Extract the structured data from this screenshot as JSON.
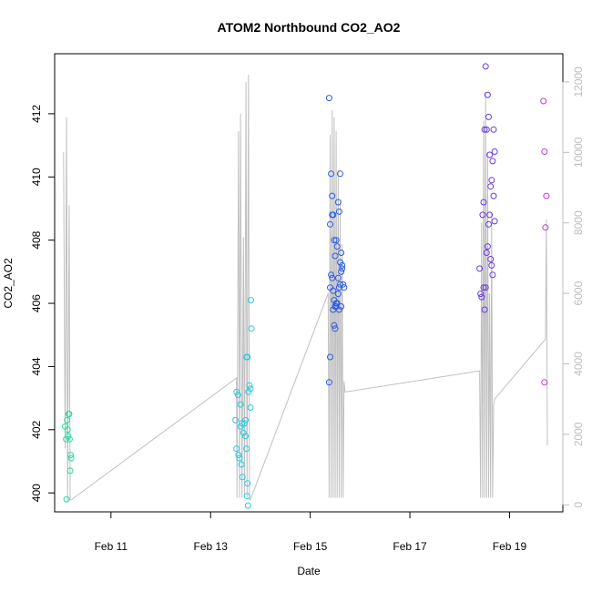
{
  "chart_data": {
    "type": "scatter",
    "title": "ATOM2 Northbound CO2_AO2",
    "xlabel": "Date",
    "ylabel": "CO2_AO2",
    "x_ticks": [
      "Feb 11",
      "Feb 13",
      "Feb 15",
      "Feb 17",
      "Feb 19"
    ],
    "x_tick_days": [
      11,
      13,
      15,
      17,
      19
    ],
    "xlim": [
      9.87,
      20.07
    ],
    "y_ticks": [
      400,
      402,
      404,
      406,
      408,
      410,
      412
    ],
    "ylim": [
      399.4,
      413.9
    ],
    "y2_ticks": [
      0,
      2000,
      4000,
      6000,
      8000,
      10000,
      12000
    ],
    "y2lim": [
      -200,
      12800
    ],
    "colors": {
      "axis": "#000000",
      "right_axis": "#bdbdbd",
      "line": "#c0c0c0"
    },
    "series": [
      {
        "color": "#2fd8a0",
        "points": [
          [
            10.08,
            402.1
          ],
          [
            10.1,
            401.7
          ],
          [
            10.12,
            402.3
          ],
          [
            10.13,
            402.0
          ],
          [
            10.14,
            401.8
          ],
          [
            10.15,
            402.5
          ],
          [
            10.16,
            402.5
          ],
          [
            10.17,
            401.7
          ],
          [
            10.18,
            400.7
          ],
          [
            10.2,
            401.1
          ],
          [
            10.19,
            401.2
          ],
          [
            10.11,
            399.8
          ]
        ]
      },
      {
        "color": "#29c9e0",
        "points": [
          [
            13.5,
            402.3
          ],
          [
            13.52,
            403.2
          ],
          [
            13.55,
            403.1
          ],
          [
            13.52,
            401.4
          ],
          [
            13.56,
            401.2
          ],
          [
            13.58,
            401.1
          ],
          [
            13.6,
            402.1
          ],
          [
            13.63,
            402.2
          ],
          [
            13.62,
            400.9
          ],
          [
            13.64,
            400.5
          ],
          [
            13.66,
            401.9
          ],
          [
            13.68,
            402.2
          ],
          [
            13.7,
            402.3
          ],
          [
            13.72,
            404.3
          ],
          [
            13.74,
            404.3
          ],
          [
            13.76,
            403.2
          ],
          [
            13.78,
            403.4
          ],
          [
            13.8,
            403.3
          ],
          [
            13.8,
            402.7
          ],
          [
            13.82,
            405.2
          ],
          [
            13.81,
            406.1
          ],
          [
            13.7,
            401.8
          ],
          [
            13.72,
            401.4
          ],
          [
            13.74,
            400.3
          ],
          [
            13.73,
            399.9
          ],
          [
            13.75,
            399.6
          ],
          [
            13.6,
            402.8
          ]
        ]
      },
      {
        "color": "#2a5be8",
        "points": [
          [
            15.38,
            412.5
          ],
          [
            15.4,
            408.5
          ],
          [
            15.42,
            410.1
          ],
          [
            15.44,
            409.4
          ],
          [
            15.46,
            408.8
          ],
          [
            15.48,
            408.0
          ],
          [
            15.5,
            407.5
          ],
          [
            15.52,
            408.0
          ],
          [
            15.54,
            407.8
          ],
          [
            15.56,
            409.2
          ],
          [
            15.58,
            408.9
          ],
          [
            15.6,
            410.1
          ],
          [
            15.62,
            407.6
          ],
          [
            15.4,
            406.5
          ],
          [
            15.42,
            406.9
          ],
          [
            15.44,
            406.8
          ],
          [
            15.46,
            406.4
          ],
          [
            15.48,
            406.1
          ],
          [
            15.5,
            405.9
          ],
          [
            15.52,
            406.0
          ],
          [
            15.54,
            406.0
          ],
          [
            15.56,
            406.3
          ],
          [
            15.58,
            406.5
          ],
          [
            15.6,
            406.6
          ],
          [
            15.62,
            407.0
          ],
          [
            15.64,
            407.2
          ],
          [
            15.66,
            406.6
          ],
          [
            15.68,
            406.5
          ],
          [
            15.62,
            405.9
          ],
          [
            15.64,
            407.1
          ],
          [
            15.6,
            407.3
          ],
          [
            15.48,
            405.3
          ],
          [
            15.5,
            405.2
          ],
          [
            15.4,
            404.3
          ],
          [
            15.38,
            403.5
          ],
          [
            15.44,
            408.8
          ],
          [
            15.46,
            405.8
          ],
          [
            15.52,
            405.9
          ],
          [
            15.56,
            406.8
          ],
          [
            15.58,
            405.8
          ]
        ]
      },
      {
        "color": "#6a3ae0",
        "points": [
          [
            18.4,
            407.1
          ],
          [
            18.42,
            406.3
          ],
          [
            18.44,
            406.2
          ],
          [
            18.46,
            408.8
          ],
          [
            18.48,
            406.5
          ],
          [
            18.5,
            405.8
          ],
          [
            18.52,
            406.5
          ],
          [
            18.54,
            407.6
          ],
          [
            18.56,
            407.8
          ],
          [
            18.58,
            408.5
          ],
          [
            18.6,
            408.8
          ],
          [
            18.62,
            407.4
          ],
          [
            18.64,
            407.2
          ],
          [
            18.66,
            406.9
          ],
          [
            18.68,
            409.4
          ],
          [
            18.7,
            408.6
          ],
          [
            18.48,
            409.2
          ],
          [
            18.5,
            411.5
          ],
          [
            18.52,
            413.5
          ],
          [
            18.54,
            411.5
          ],
          [
            18.56,
            412.6
          ],
          [
            18.58,
            411.9
          ],
          [
            18.6,
            410.7
          ],
          [
            18.62,
            409.7
          ],
          [
            18.64,
            409.9
          ],
          [
            18.66,
            410.5
          ],
          [
            18.68,
            411.5
          ],
          [
            18.7,
            410.8
          ]
        ]
      },
      {
        "color": "#c03ad8",
        "points": [
          [
            19.68,
            412.4
          ],
          [
            19.7,
            410.8
          ],
          [
            19.72,
            408.4
          ],
          [
            19.74,
            409.4
          ],
          [
            19.7,
            403.5
          ]
        ]
      }
    ],
    "trace": {
      "axis": "right",
      "points": [
        [
          10.05,
          10000
        ],
        [
          10.08,
          1600
        ],
        [
          10.11,
          11000
        ],
        [
          10.13,
          100
        ],
        [
          10.16,
          8500
        ],
        [
          10.18,
          150
        ],
        [
          10.21,
          150
        ],
        [
          13.52,
          3600
        ],
        [
          13.53,
          200
        ],
        [
          13.56,
          10600
        ],
        [
          13.58,
          200
        ],
        [
          13.6,
          11100
        ],
        [
          13.63,
          200
        ],
        [
          13.66,
          7600
        ],
        [
          13.68,
          200
        ],
        [
          13.71,
          12000
        ],
        [
          13.73,
          200
        ],
        [
          13.76,
          12200
        ],
        [
          13.78,
          150
        ],
        [
          13.8,
          150
        ],
        [
          15.36,
          6000
        ],
        [
          15.38,
          200
        ],
        [
          15.4,
          10500
        ],
        [
          15.42,
          200
        ],
        [
          15.44,
          11200
        ],
        [
          15.46,
          200
        ],
        [
          15.48,
          11000
        ],
        [
          15.5,
          200
        ],
        [
          15.52,
          10600
        ],
        [
          15.54,
          200
        ],
        [
          15.56,
          9500
        ],
        [
          15.58,
          200
        ],
        [
          15.6,
          8600
        ],
        [
          15.62,
          200
        ],
        [
          15.64,
          7400
        ],
        [
          15.66,
          200
        ],
        [
          15.68,
          3500
        ],
        [
          15.7,
          3200
        ],
        [
          18.4,
          3800
        ],
        [
          18.42,
          200
        ],
        [
          18.44,
          8000
        ],
        [
          18.46,
          200
        ],
        [
          18.48,
          10900
        ],
        [
          18.5,
          200
        ],
        [
          18.52,
          11700
        ],
        [
          18.54,
          200
        ],
        [
          18.56,
          10000
        ],
        [
          18.58,
          200
        ],
        [
          18.6,
          6000
        ],
        [
          18.62,
          200
        ],
        [
          18.64,
          8300
        ],
        [
          18.66,
          200
        ],
        [
          18.68,
          2800
        ],
        [
          18.7,
          3000
        ],
        [
          19.72,
          4700
        ],
        [
          19.74,
          8100
        ],
        [
          19.76,
          1700
        ],
        [
          19.77,
          1700
        ]
      ]
    }
  }
}
